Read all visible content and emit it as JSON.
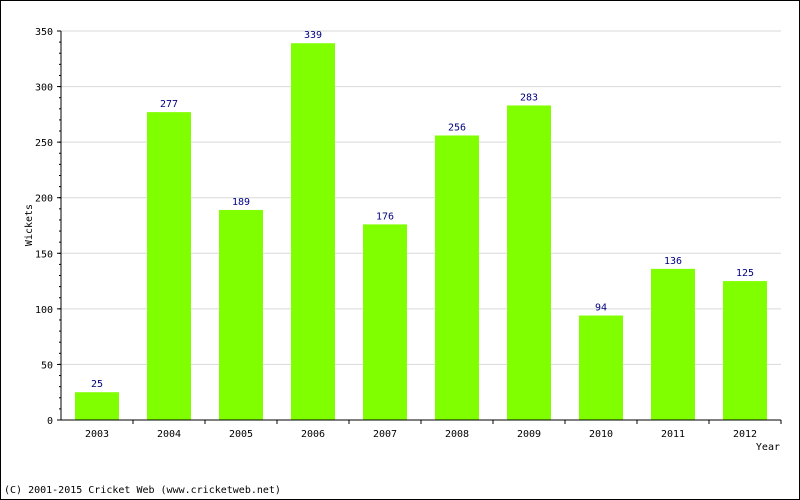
{
  "chart_data": {
    "type": "bar",
    "title": "",
    "xlabel": "Year",
    "ylabel": "Wickets",
    "categories": [
      "2003",
      "2004",
      "2005",
      "2006",
      "2007",
      "2008",
      "2009",
      "2010",
      "2011",
      "2012"
    ],
    "values": [
      25,
      277,
      189,
      339,
      176,
      256,
      283,
      94,
      136,
      125
    ],
    "value_labels": [
      "25",
      "277",
      "189",
      "339",
      "176",
      "256",
      "283",
      "94",
      "136",
      "125"
    ],
    "ylim": [
      0,
      350
    ],
    "yticks": [
      "0",
      "50",
      "100",
      "150",
      "200",
      "250",
      "300",
      "350"
    ],
    "grid": true,
    "bar_color": "#80ff00",
    "value_label_color": "#000080"
  },
  "footer": {
    "copyright": "(C) 2001-2015 Cricket Web (www.cricketweb.net)"
  }
}
